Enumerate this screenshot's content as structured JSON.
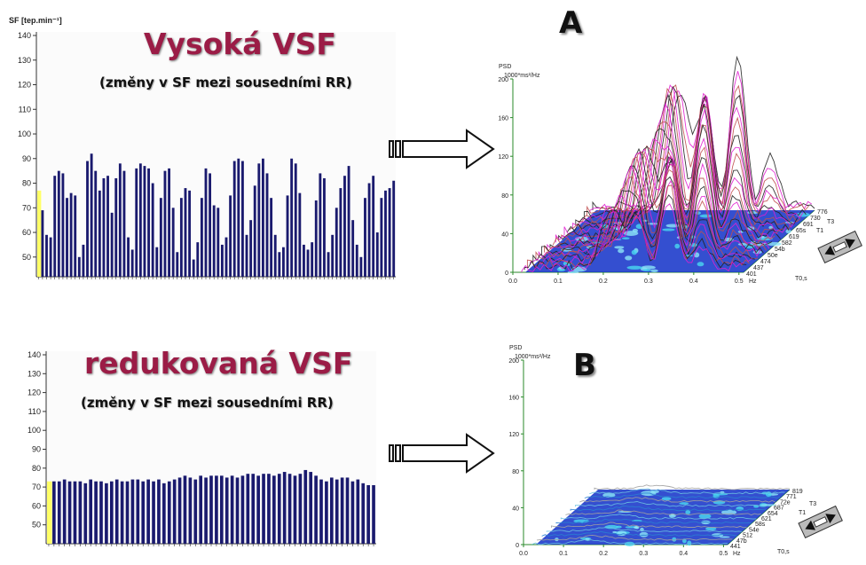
{
  "chart_data": [
    {
      "type": "bar",
      "panel": "top-left",
      "ylabel": "SF [tep.min⁻¹]",
      "title": "Vysoká VSF",
      "subtitle": "(změny v SF mezi sousedními RR)",
      "yticks": [
        50,
        60,
        70,
        80,
        90,
        100,
        110,
        120,
        130,
        140
      ],
      "ylim": [
        42,
        140
      ],
      "highlight_color": "#ffff66",
      "bar_color": "#1a1a6e",
      "first_value": 77,
      "values": [
        69,
        59,
        58,
        83,
        85,
        84,
        74,
        76,
        75,
        50,
        55,
        89,
        92,
        85,
        77,
        82,
        83,
        68,
        82,
        88,
        85,
        58,
        53,
        86,
        88,
        87,
        86,
        80,
        54,
        74,
        85,
        86,
        70,
        52,
        74,
        78,
        77,
        49,
        56,
        74,
        86,
        84,
        71,
        70,
        55,
        58,
        75,
        89,
        90,
        89,
        59,
        65,
        79,
        88,
        90,
        84,
        74,
        59,
        52,
        54,
        75,
        90,
        88,
        76,
        55,
        53,
        56,
        73,
        84,
        82,
        52,
        59,
        70,
        78,
        83,
        87,
        65,
        55,
        50,
        74,
        80,
        83,
        60,
        74,
        77,
        78,
        81
      ]
    },
    {
      "type": "bar",
      "panel": "bottom-left",
      "title": "redukovaná VSF",
      "subtitle": "(změny v SF mezi sousedními RR)",
      "yticks": [
        50,
        60,
        70,
        80,
        90,
        100,
        110,
        120,
        130,
        140
      ],
      "ylim": [
        40,
        140
      ],
      "highlight_color": "#ffff66",
      "bar_color": "#1a1a6e",
      "first_value": 73,
      "values": [
        73,
        73,
        74,
        73,
        73,
        73,
        72,
        74,
        73,
        73,
        72,
        73,
        74,
        73,
        73,
        74,
        74,
        73,
        74,
        73,
        74,
        72,
        73,
        74,
        75,
        76,
        75,
        74,
        76,
        75,
        76,
        76,
        76,
        75,
        76,
        75,
        76,
        77,
        77,
        76,
        77,
        77,
        76,
        77,
        78,
        77,
        76,
        77,
        79,
        78,
        76,
        74,
        73,
        75,
        74,
        75,
        75,
        73,
        74,
        72,
        71,
        71
      ]
    },
    {
      "type": "area",
      "panel": "A",
      "label": "A",
      "ylabel_line1": "PSD",
      "ylabel_line2": "1000*ms²/Hz",
      "yticks": [
        "0",
        "40",
        "80",
        "120",
        "160",
        "200"
      ],
      "xticks": [
        "0.0",
        "0.1",
        "0.2",
        "0.3",
        "0.4",
        "0.5"
      ],
      "xunit": "Hz",
      "depth_ticks": [
        "776",
        "730",
        "691",
        "65s",
        "619",
        "582",
        "54b",
        "50e",
        "474",
        "437",
        "401"
      ],
      "t3_label": "T3",
      "t1_label": "T1",
      "t0_label": "T0,s"
    },
    {
      "type": "area",
      "panel": "B",
      "label": "B",
      "ylabel_line1": "PSD",
      "ylabel_line2": "1000*ms²/Hz",
      "yticks": [
        "0",
        "40",
        "80",
        "120",
        "160",
        "200"
      ],
      "xticks": [
        "0.0",
        "0.1",
        "0.2",
        "0.3",
        "0.4",
        "0.5"
      ],
      "xunit": "Hz",
      "depth_ticks": [
        "819",
        "771",
        "72e",
        "687",
        "654",
        "621",
        "58s",
        "54e",
        "51z",
        "47b",
        "441"
      ],
      "t3_label": "T3",
      "t1_label": "T1",
      "t0_label": "T0,s"
    }
  ]
}
